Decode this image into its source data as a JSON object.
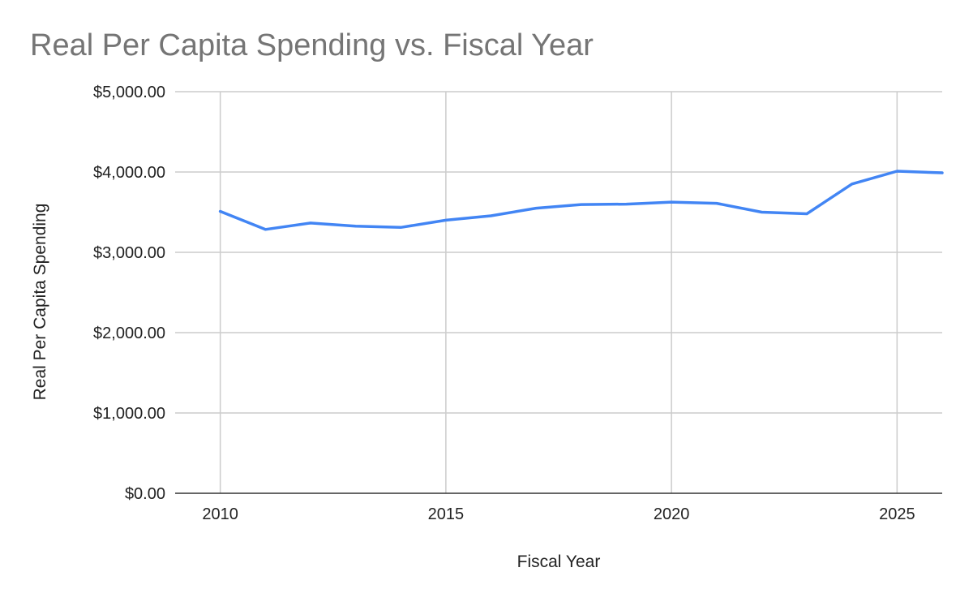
{
  "chart_data": {
    "type": "line",
    "title": "Real Per Capita Spending vs. Fiscal Year",
    "xlabel": "Fiscal Year",
    "ylabel": "Real Per Capita Spending",
    "xlim": [
      2009,
      2026
    ],
    "ylim": [
      0,
      5000
    ],
    "x_ticks": [
      2010,
      2015,
      2020,
      2025
    ],
    "x_tick_labels": [
      "2010",
      "2015",
      "2020",
      "2025"
    ],
    "y_ticks": [
      0,
      1000,
      2000,
      3000,
      4000,
      5000
    ],
    "y_tick_labels": [
      "$0.00",
      "$1,000.00",
      "$2,000.00",
      "$3,000.00",
      "$4,000.00",
      "$5,000.00"
    ],
    "grid": true,
    "legend": "none",
    "series": [
      {
        "color": "#4285f4",
        "x": [
          2010,
          2011,
          2012,
          2013,
          2014,
          2015,
          2016,
          2017,
          2018,
          2019,
          2020,
          2021,
          2022,
          2023,
          2024,
          2025,
          2026
        ],
        "values": [
          3510,
          3285,
          3365,
          3325,
          3310,
          3400,
          3455,
          3550,
          3595,
          3600,
          3625,
          3610,
          3500,
          3480,
          3850,
          4010,
          3990
        ]
      }
    ]
  }
}
